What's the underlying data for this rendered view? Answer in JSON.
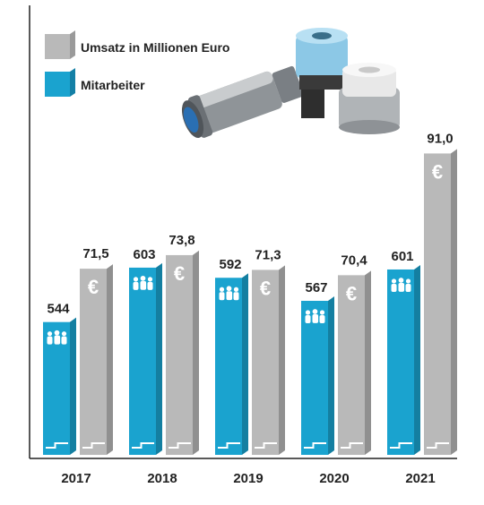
{
  "chart_data": {
    "type": "bar",
    "categories": [
      "2017",
      "2018",
      "2019",
      "2020",
      "2021"
    ],
    "series": [
      {
        "name": "Umsatz in Millionen Euro",
        "values_label": [
          "71,5",
          "73,8",
          "71,3",
          "70,4",
          "91,0"
        ],
        "values": [
          71.5,
          73.8,
          71.3,
          70.4,
          91.0
        ],
        "color": "#b9b9b9"
      },
      {
        "name": "Mitarbeiter",
        "values_label": [
          "544",
          "603",
          "592",
          "567",
          "601"
        ],
        "values": [
          544,
          603,
          592,
          567,
          601
        ],
        "color": "#1aa3cf"
      }
    ],
    "legend_placement": "top-left",
    "grid": false,
    "icons": {
      "umsatz": "euro-icon",
      "mitarbeiter": "people-icon"
    }
  }
}
